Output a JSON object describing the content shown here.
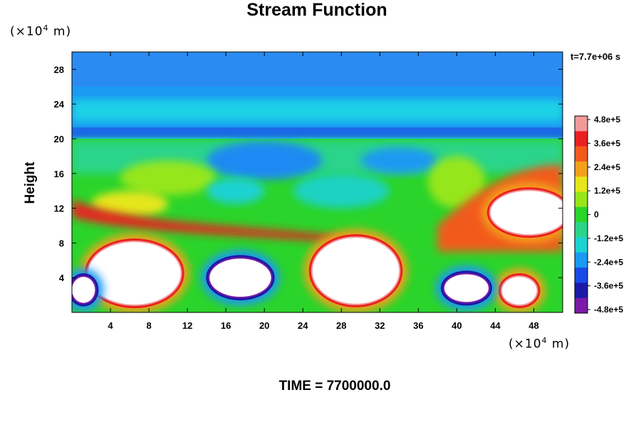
{
  "chart_data": {
    "type": "heatmap",
    "title": "Stream Function",
    "ylabel": "Height",
    "xlabel": "",
    "x_unit": {
      "prefix": "(×10",
      "exp": "4",
      "suffix": " m)"
    },
    "y_unit": {
      "prefix": "(×10",
      "exp": "4",
      "suffix": " m)"
    },
    "time_annotation": "t=7.7e+06 s",
    "footer": "TIME = 7700000.0",
    "xlim": [
      0,
      51
    ],
    "ylim": [
      0,
      30
    ],
    "x_ticks": [
      4,
      8,
      12,
      16,
      20,
      24,
      28,
      32,
      36,
      40,
      44,
      48
    ],
    "x_tick_labels": [
      "4",
      "8",
      "12",
      "16",
      "20",
      "24",
      "28",
      "32",
      "36",
      "40",
      "44",
      "48"
    ],
    "y_ticks": [
      4,
      8,
      12,
      16,
      20,
      24,
      28
    ],
    "y_tick_labels": [
      "4",
      "8",
      "12",
      "16",
      "20",
      "24",
      "28"
    ],
    "colorbar": {
      "min": -480000,
      "max": 480000,
      "tick_values": [
        480000,
        360000,
        240000,
        120000,
        0,
        -120000,
        -240000,
        -360000,
        -480000
      ],
      "tick_labels": [
        "4.8e+5",
        "3.6e+5",
        "2.4e+5",
        "1.2e+5",
        "0",
        "-1.2e+5",
        "-2.4e+5",
        "-3.6e+5",
        "-4.8e+5"
      ],
      "colors": [
        "#f29a9a",
        "#ea2020",
        "#f25a1a",
        "#f2a21a",
        "#e6e61a",
        "#96e61a",
        "#2ad42a",
        "#2ad48a",
        "#1ad2d2",
        "#1a9af2",
        "#1a4ae6",
        "#1a1aa6",
        "#7a1aa6"
      ]
    },
    "features": [
      {
        "kind": "high",
        "x": 6.5,
        "y": 4.5,
        "rx": 4.8,
        "ry": 3.6
      },
      {
        "kind": "high",
        "x": 29.5,
        "y": 4.8,
        "rx": 4.5,
        "ry": 3.8
      },
      {
        "kind": "high",
        "x": 47.5,
        "y": 11.5,
        "rx": 4,
        "ry": 2.5
      },
      {
        "kind": "high",
        "x": 46.5,
        "y": 2.5,
        "rx": 1.8,
        "ry": 1.6
      },
      {
        "kind": "low",
        "x": 17.5,
        "y": 4,
        "rx": 3.2,
        "ry": 2.2
      },
      {
        "kind": "low",
        "x": 41,
        "y": 2.8,
        "rx": 2.3,
        "ry": 1.6
      },
      {
        "kind": "low",
        "x": 1.2,
        "y": 2.6,
        "rx": 1.2,
        "ry": 1.5
      }
    ]
  }
}
